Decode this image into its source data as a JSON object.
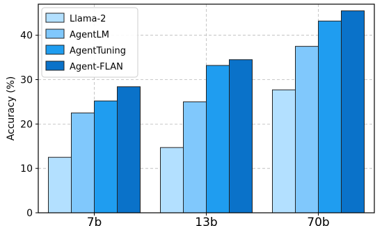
{
  "chart_data": {
    "type": "bar",
    "categories": [
      "7b",
      "13b",
      "70b"
    ],
    "series": [
      {
        "name": "Llama-2",
        "color": "#b3e0ff",
        "values": [
          12.5,
          14.7,
          27.7
        ]
      },
      {
        "name": "AgentLM",
        "color": "#80c8fc",
        "values": [
          22.5,
          25.0,
          37.5
        ]
      },
      {
        "name": "AgentTuning",
        "color": "#1f9df0",
        "values": [
          25.2,
          33.2,
          43.2
        ]
      },
      {
        "name": "Agent-FLAN",
        "color": "#0a72c9",
        "values": [
          28.4,
          34.5,
          45.5
        ]
      }
    ],
    "ylabel": "Accuracy (%)",
    "xlabel": "",
    "ylim": [
      0,
      47
    ],
    "yticks": [
      0,
      10,
      20,
      30,
      40
    ],
    "grid": true,
    "legend_position": "top-left"
  }
}
